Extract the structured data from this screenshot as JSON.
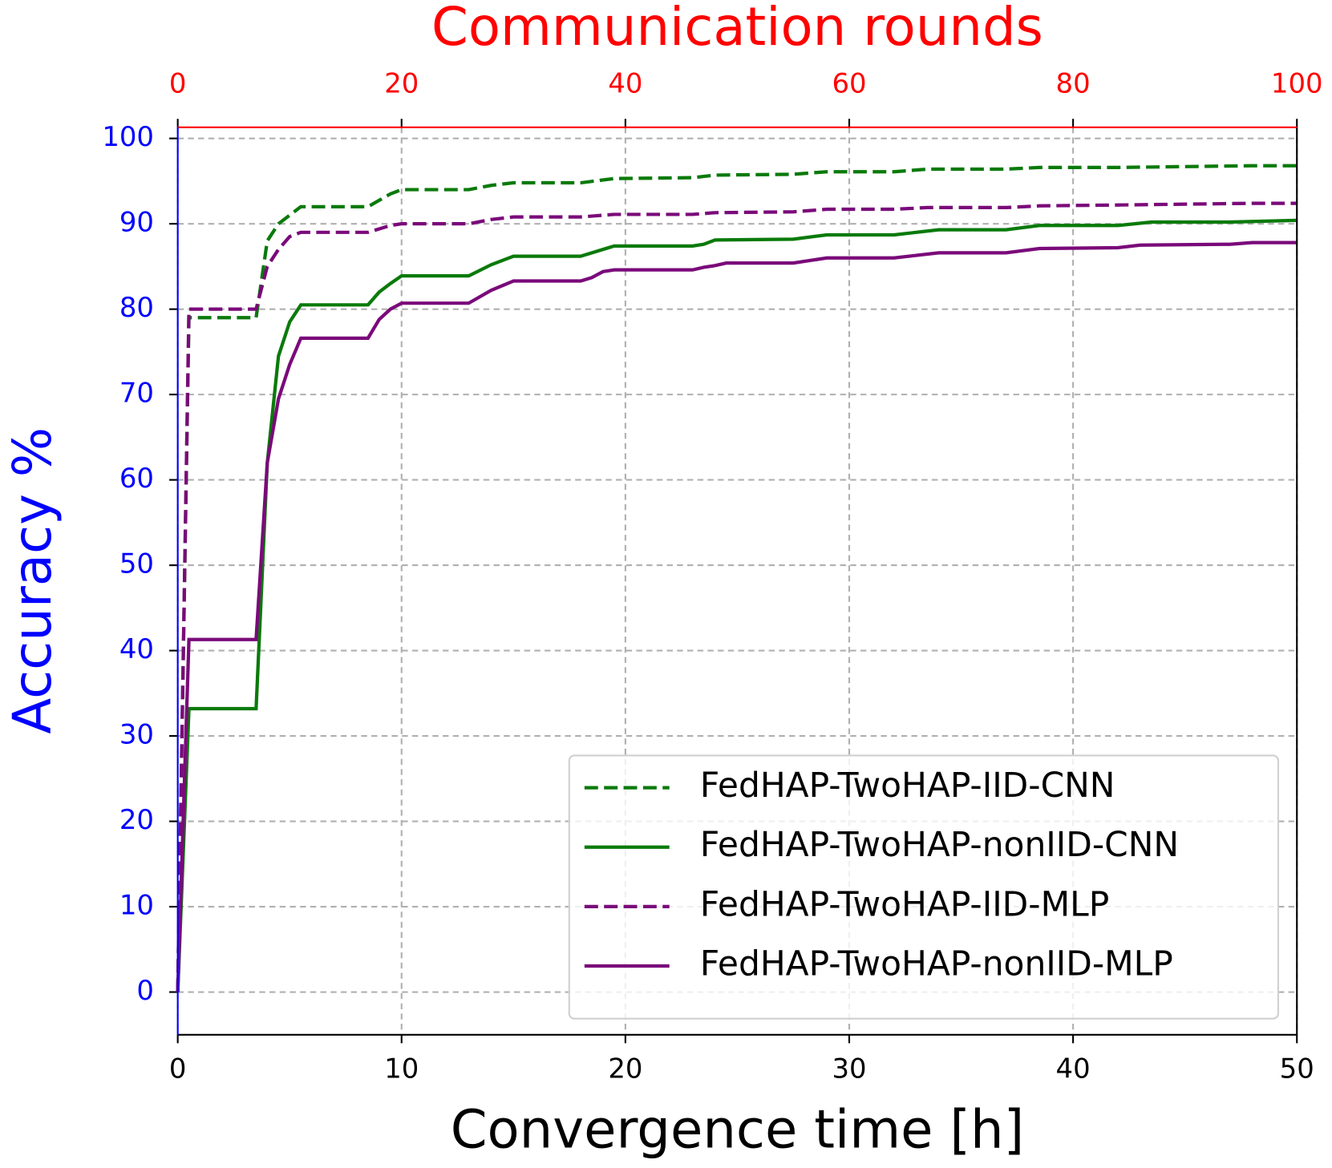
{
  "chart_data": {
    "type": "line",
    "xlabel": "Convergence time [h]",
    "ylabel": "Accuracy %",
    "x2label": "Communication rounds",
    "xlim": [
      0,
      50
    ],
    "xticks": [
      0,
      10,
      20,
      30,
      40,
      50
    ],
    "x2lim": [
      0,
      100
    ],
    "x2ticks": [
      0,
      20,
      40,
      60,
      80,
      100
    ],
    "ylim": [
      -5,
      101.3
    ],
    "yticks": [
      0,
      10,
      20,
      30,
      40,
      50,
      60,
      70,
      80,
      90,
      100
    ],
    "grid": true,
    "legend": "lower right",
    "series": [
      {
        "name": "FedHAP-TwoHAP-IID-CNN",
        "color": "#0a7a0a",
        "dash": true,
        "x": [
          0,
          0.5,
          3.5,
          4,
          4.5,
          5,
          5.5,
          8.5,
          9.5,
          10,
          13,
          14,
          15,
          18,
          19.5,
          23,
          24,
          27.5,
          29,
          32,
          33.5,
          37,
          38.5,
          42,
          48,
          50
        ],
        "values": [
          0,
          79,
          79,
          88,
          90,
          91,
          92,
          92,
          93.5,
          94,
          94,
          94.5,
          94.8,
          94.8,
          95.3,
          95.4,
          95.7,
          95.8,
          96.1,
          96.1,
          96.4,
          96.4,
          96.6,
          96.6,
          96.8,
          96.8
        ]
      },
      {
        "name": "FedHAP-TwoHAP-nonIID-CNN",
        "color": "#0a7a0a",
        "dash": false,
        "x": [
          0,
          0.5,
          3.5,
          4,
          4.5,
          5,
          5.5,
          8.5,
          9,
          9.5,
          10,
          13,
          14,
          15,
          18,
          19.5,
          23,
          23.5,
          24,
          27.5,
          29,
          32,
          33,
          34,
          37,
          38.5,
          42,
          43.5,
          47,
          50
        ],
        "values": [
          0,
          33.2,
          33.2,
          62,
          74.5,
          78.5,
          80.5,
          80.5,
          82,
          83,
          83.9,
          83.9,
          85.2,
          86.2,
          86.2,
          87.4,
          87.4,
          87.6,
          88.1,
          88.2,
          88.7,
          88.7,
          89,
          89.3,
          89.3,
          89.8,
          89.8,
          90.2,
          90.2,
          90.4
        ]
      },
      {
        "name": "FedHAP-TwoHAP-IID-MLP",
        "color": "#7a0a7a",
        "dash": true,
        "x": [
          0,
          0.5,
          3.5,
          4,
          4.5,
          5,
          5.5,
          8.5,
          9.5,
          10,
          13,
          14,
          15,
          18,
          19.5,
          23,
          24,
          27.5,
          29,
          32,
          33.5,
          37,
          38.5,
          42,
          48,
          50
        ],
        "values": [
          0,
          80,
          80,
          85,
          87,
          88.5,
          89,
          89,
          89.8,
          90,
          90,
          90.5,
          90.8,
          90.8,
          91.1,
          91.1,
          91.3,
          91.4,
          91.7,
          91.7,
          91.9,
          91.9,
          92.1,
          92.2,
          92.4,
          92.4
        ]
      },
      {
        "name": "FedHAP-TwoHAP-nonIID-MLP",
        "color": "#7a0a7a",
        "dash": false,
        "x": [
          0,
          0.5,
          3.5,
          4,
          4.5,
          5,
          5.5,
          8.5,
          9,
          9.5,
          10,
          13,
          14,
          15,
          18,
          18.5,
          19,
          19.5,
          23,
          23.5,
          24,
          24.5,
          27.5,
          29,
          32,
          33,
          34,
          37,
          38.5,
          42,
          43,
          47,
          48,
          50
        ],
        "values": [
          0,
          41.3,
          41.3,
          62,
          69.5,
          73.5,
          76.6,
          76.6,
          78.8,
          80,
          80.7,
          80.7,
          82.2,
          83.3,
          83.3,
          83.7,
          84.4,
          84.6,
          84.6,
          84.9,
          85.1,
          85.4,
          85.4,
          86,
          86,
          86.3,
          86.6,
          86.6,
          87.1,
          87.2,
          87.5,
          87.6,
          87.8,
          87.8
        ]
      }
    ]
  }
}
